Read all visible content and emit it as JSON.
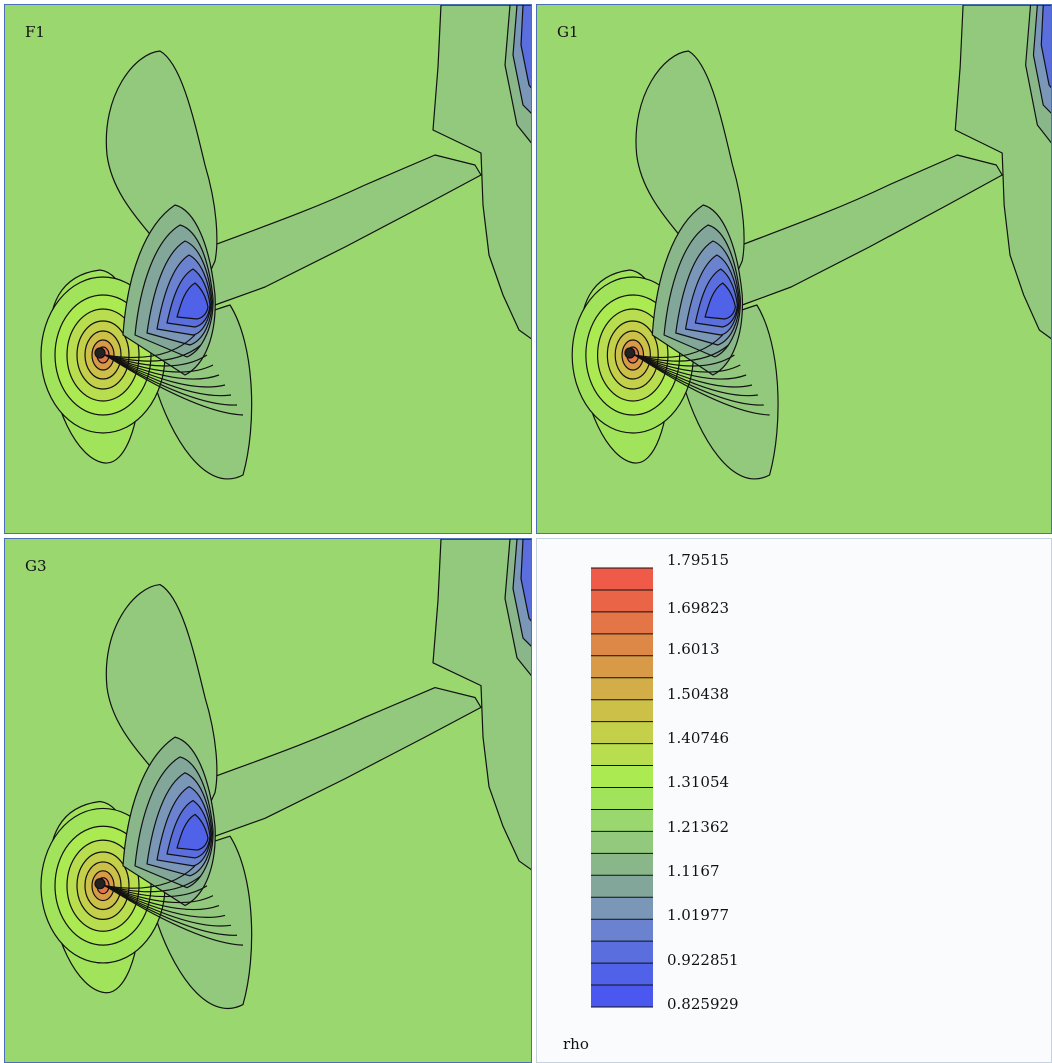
{
  "chart_data": {
    "type": "heatmap",
    "variable": "rho",
    "colorbar": {
      "labels": [
        "1.79515",
        "1.69823",
        "1.6013",
        "1.50438",
        "1.40746",
        "1.31054",
        "1.21362",
        "1.1167",
        "1.01977",
        "0.922851",
        "0.825929"
      ],
      "range": [
        0.825929,
        1.79515
      ],
      "bands": 20,
      "colors": [
        "#4a58f0",
        "#4f62e8",
        "#5a6edd",
        "#6a82cf",
        "#7a97b8",
        "#82a79a",
        "#89b789",
        "#93c97c",
        "#9ad76f",
        "#a1e45b",
        "#acea52",
        "#b8dd4e",
        "#c4cf4a",
        "#cdc048",
        "#d2ad48",
        "#d89a47",
        "#dd8846",
        "#e47546",
        "#ea6447",
        "#f05a48"
      ]
    },
    "panels": [
      {
        "label": "F1"
      },
      {
        "label": "G1"
      },
      {
        "label": "G3"
      }
    ]
  }
}
